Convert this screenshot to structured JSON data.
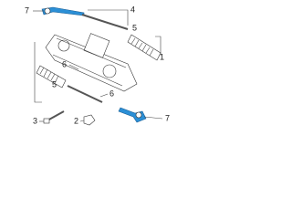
{
  "callouts": [
    {
      "label": "7"
    },
    {
      "label": "4"
    },
    {
      "label": "5"
    },
    {
      "label": "1"
    },
    {
      "label": "6"
    },
    {
      "label": "5"
    },
    {
      "label": "6"
    },
    {
      "label": "3"
    },
    {
      "label": "2"
    },
    {
      "label": "7"
    }
  ]
}
